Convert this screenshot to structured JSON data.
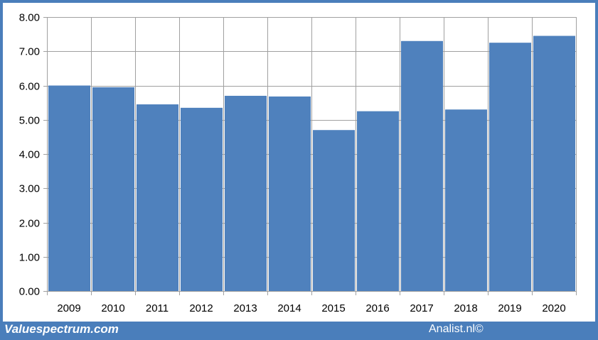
{
  "chart_data": {
    "type": "bar",
    "categories": [
      "2009",
      "2010",
      "2011",
      "2012",
      "2013",
      "2014",
      "2015",
      "2016",
      "2017",
      "2018",
      "2019",
      "2020"
    ],
    "values": [
      6.0,
      5.95,
      5.45,
      5.35,
      5.7,
      5.68,
      4.7,
      5.25,
      7.3,
      5.3,
      7.25,
      7.45
    ],
    "ylim": [
      0,
      8
    ],
    "yticks": [
      "0.00",
      "1.00",
      "2.00",
      "3.00",
      "4.00",
      "5.00",
      "6.00",
      "7.00",
      "8.00"
    ],
    "grid": true,
    "bar_color": "#4f81bd",
    "title": "",
    "xlabel": "",
    "ylabel": ""
  },
  "footer": {
    "brand": "Valuespectrum.com",
    "credit": "Analist.nl©"
  },
  "colors": {
    "frame": "#4a7ebb",
    "gridline": "#a0a0a0"
  }
}
